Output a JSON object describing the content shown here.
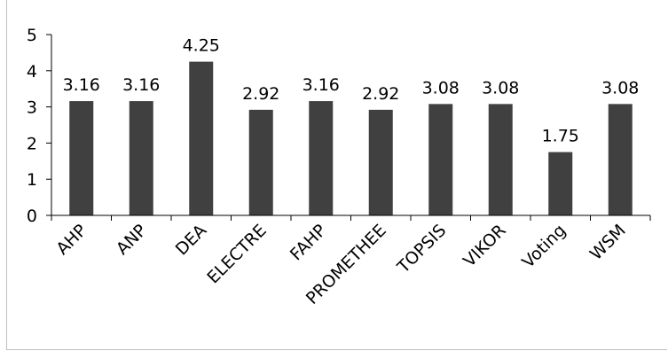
{
  "chart_data": {
    "type": "bar",
    "title": "",
    "xlabel": "",
    "ylabel": "",
    "categories": [
      "AHP",
      "ANP",
      "DEA",
      "ELECTRE",
      "FAHP",
      "PROMETHEE",
      "TOPSIS",
      "VIKOR",
      "Voting",
      "WSM"
    ],
    "values": [
      3.16,
      3.16,
      4.25,
      2.92,
      3.16,
      2.92,
      3.08,
      3.08,
      1.75,
      3.08
    ],
    "data_labels": [
      "3.16",
      "3.16",
      "4.25",
      "2.92",
      "3.16",
      "2.92",
      "3.08",
      "3.08",
      "1.75",
      "3.08"
    ],
    "ylim": [
      0,
      5
    ],
    "yticks": [
      "0",
      "1",
      "2",
      "3",
      "4",
      "5"
    ],
    "grid": false,
    "legend": "none",
    "bar_color": "#404040"
  }
}
